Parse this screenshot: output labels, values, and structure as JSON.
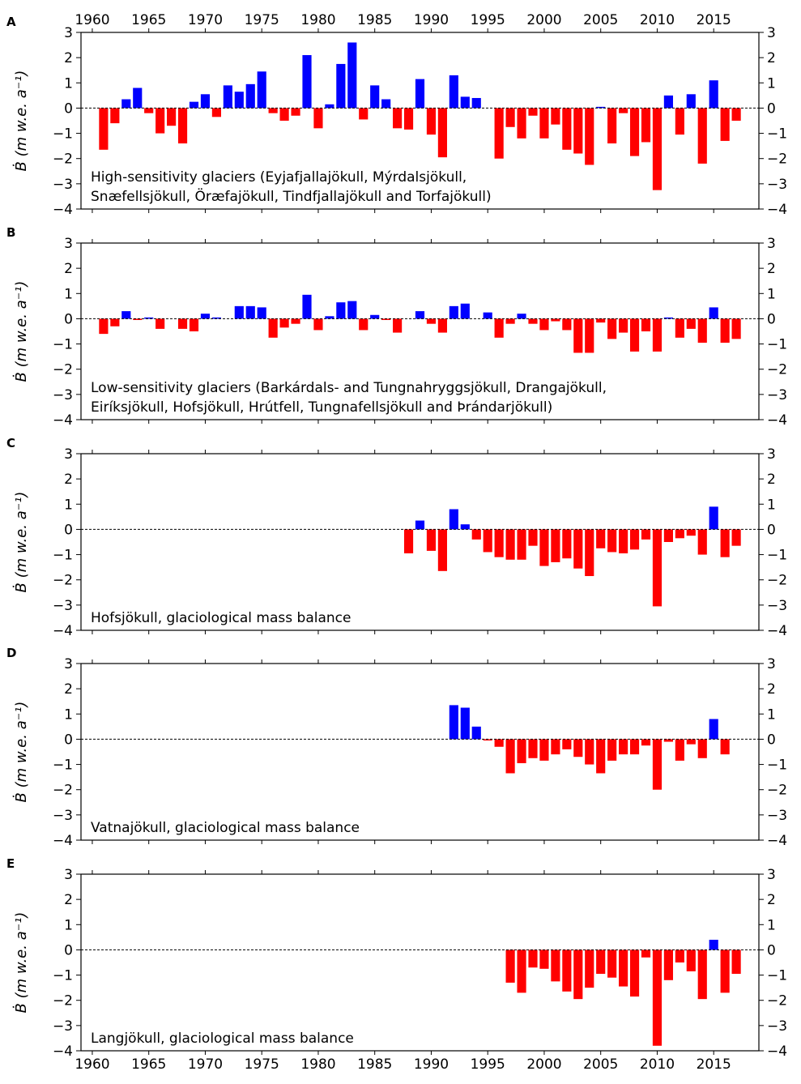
{
  "chart_data": [
    {
      "panel": "A",
      "type": "bar",
      "label": "High-sensitivity glaciers (Eyjafjallajökull, Mýrdalsjökull,\nSnæfellsjökull, Öræfajökull, Tindfjallajökull and Torfajökull)",
      "ylabel": "Ḃ (m w.e. a⁻¹)",
      "xlim": [
        1959,
        2019
      ],
      "ylim": [
        -4,
        3
      ],
      "yticks": [
        -4,
        -3,
        -2,
        -1,
        0,
        1,
        2,
        3
      ],
      "xticks": [
        1960,
        1965,
        1970,
        1975,
        1980,
        1985,
        1990,
        1995,
        2000,
        2005,
        2010,
        2015
      ],
      "positive_color": "#0000ff",
      "negative_color": "#ff0000",
      "x": [
        1961,
        1962,
        1963,
        1964,
        1965,
        1966,
        1967,
        1968,
        1969,
        1970,
        1971,
        1972,
        1973,
        1974,
        1975,
        1976,
        1977,
        1978,
        1979,
        1980,
        1981,
        1982,
        1983,
        1984,
        1985,
        1986,
        1987,
        1988,
        1989,
        1990,
        1991,
        1992,
        1993,
        1994,
        1995,
        1996,
        1997,
        1998,
        1999,
        2000,
        2001,
        2002,
        2003,
        2004,
        2005,
        2006,
        2007,
        2008,
        2009,
        2010,
        2011,
        2012,
        2013,
        2014,
        2015,
        2016,
        2017
      ],
      "values": [
        -1.65,
        -0.6,
        0.35,
        0.8,
        -0.2,
        -1.0,
        -0.7,
        -1.4,
        0.25,
        0.55,
        -0.35,
        0.9,
        0.65,
        0.95,
        1.45,
        -0.2,
        -0.5,
        -0.3,
        2.1,
        -0.8,
        0.15,
        1.75,
        2.6,
        -0.45,
        0.9,
        0.35,
        -0.8,
        -0.85,
        1.15,
        -1.05,
        -1.95,
        1.3,
        0.45,
        0.4,
        0.0,
        -2.0,
        -0.75,
        -1.2,
        -0.3,
        -1.2,
        -0.65,
        -1.65,
        -1.8,
        -2.25,
        0.05,
        -1.4,
        -0.2,
        -1.9,
        -1.35,
        -3.25,
        0.5,
        -1.05,
        0.55,
        -2.2,
        1.1,
        -1.3,
        -0.5
      ]
    },
    {
      "panel": "B",
      "type": "bar",
      "label": "Low-sensitivity glaciers (Barkárdals- and Tungnahryggsjökull, Drangajökull,\nEiríksjökull, Hofsjökull, Hrútfell, Tungnafellsjökull and Þrándarjökull)",
      "ylabel": "Ḃ (m w.e. a⁻¹)",
      "xlim": [
        1959,
        2019
      ],
      "ylim": [
        -4,
        3
      ],
      "yticks": [
        -4,
        -3,
        -2,
        -1,
        0,
        1,
        2,
        3
      ],
      "positive_color": "#0000ff",
      "negative_color": "#ff0000",
      "x": [
        1961,
        1962,
        1963,
        1964,
        1965,
        1966,
        1967,
        1968,
        1969,
        1970,
        1971,
        1972,
        1973,
        1974,
        1975,
        1976,
        1977,
        1978,
        1979,
        1980,
        1981,
        1982,
        1983,
        1984,
        1985,
        1986,
        1987,
        1988,
        1989,
        1990,
        1991,
        1992,
        1993,
        1994,
        1995,
        1996,
        1997,
        1998,
        1999,
        2000,
        2001,
        2002,
        2003,
        2004,
        2005,
        2006,
        2007,
        2008,
        2009,
        2010,
        2011,
        2012,
        2013,
        2014,
        2015,
        2016,
        2017
      ],
      "values": [
        -0.6,
        -0.3,
        0.3,
        -0.05,
        0.05,
        -0.4,
        0.0,
        -0.4,
        -0.5,
        0.2,
        0.05,
        0.0,
        0.5,
        0.5,
        0.45,
        -0.75,
        -0.35,
        -0.2,
        0.95,
        -0.45,
        0.1,
        0.65,
        0.7,
        -0.45,
        0.15,
        -0.05,
        -0.55,
        0.0,
        0.3,
        -0.2,
        -0.55,
        0.5,
        0.6,
        0.0,
        0.25,
        -0.75,
        -0.2,
        0.2,
        -0.2,
        -0.45,
        -0.1,
        -0.45,
        -1.35,
        -1.35,
        -0.15,
        -0.8,
        -0.55,
        -1.3,
        -0.5,
        -1.3,
        0.05,
        -0.75,
        -0.4,
        -0.95,
        0.45,
        -0.95,
        -0.8
      ]
    },
    {
      "panel": "C",
      "type": "bar",
      "label": "Hofsjökull, glaciological mass balance",
      "ylabel": "Ḃ (m w.e. a⁻¹)",
      "xlim": [
        1959,
        2019
      ],
      "ylim": [
        -4,
        3
      ],
      "yticks": [
        -4,
        -3,
        -2,
        -1,
        0,
        1,
        2,
        3
      ],
      "positive_color": "#0000ff",
      "negative_color": "#ff0000",
      "x": [
        1988,
        1989,
        1990,
        1991,
        1992,
        1993,
        1994,
        1995,
        1996,
        1997,
        1998,
        1999,
        2000,
        2001,
        2002,
        2003,
        2004,
        2005,
        2006,
        2007,
        2008,
        2009,
        2010,
        2011,
        2012,
        2013,
        2014,
        2015,
        2016,
        2017
      ],
      "values": [
        -0.95,
        0.35,
        -0.85,
        -1.65,
        0.8,
        0.2,
        -0.4,
        -0.9,
        -1.1,
        -1.2,
        -1.2,
        -0.65,
        -1.45,
        -1.3,
        -1.15,
        -1.55,
        -1.85,
        -0.75,
        -0.9,
        -0.95,
        -0.8,
        -0.4,
        -3.05,
        -0.5,
        -0.35,
        -0.25,
        -1.0,
        0.9,
        -1.1,
        -0.65
      ]
    },
    {
      "panel": "D",
      "type": "bar",
      "label": "Vatnajökull, glaciological mass balance",
      "ylabel": "Ḃ (m w.e. a⁻¹)",
      "xlim": [
        1959,
        2019
      ],
      "ylim": [
        -4,
        3
      ],
      "yticks": [
        -4,
        -3,
        -2,
        -1,
        0,
        1,
        2,
        3
      ],
      "positive_color": "#0000ff",
      "negative_color": "#ff0000",
      "x": [
        1992,
        1993,
        1994,
        1995,
        1996,
        1997,
        1998,
        1999,
        2000,
        2001,
        2002,
        2003,
        2004,
        2005,
        2006,
        2007,
        2008,
        2009,
        2010,
        2011,
        2012,
        2013,
        2014,
        2015,
        2016
      ],
      "values": [
        1.35,
        1.25,
        0.5,
        -0.05,
        -0.3,
        -1.35,
        -0.95,
        -0.75,
        -0.85,
        -0.6,
        -0.4,
        -0.7,
        -1.0,
        -1.35,
        -0.85,
        -0.6,
        -0.6,
        -0.25,
        -2.0,
        -0.1,
        -0.85,
        -0.2,
        -0.75,
        0.8,
        -0.6
      ]
    },
    {
      "panel": "E",
      "type": "bar",
      "label": "Langjökull, glaciological mass balance",
      "ylabel": "Ḃ (m w.e. a⁻¹)",
      "xlim": [
        1959,
        2019
      ],
      "ylim": [
        -4,
        3
      ],
      "yticks": [
        -4,
        -3,
        -2,
        -1,
        0,
        1,
        2,
        3
      ],
      "xticks": [
        1960,
        1965,
        1970,
        1975,
        1980,
        1985,
        1990,
        1995,
        2000,
        2005,
        2010,
        2015
      ],
      "positive_color": "#0000ff",
      "negative_color": "#ff0000",
      "x": [
        1997,
        1998,
        1999,
        2000,
        2001,
        2002,
        2003,
        2004,
        2005,
        2006,
        2007,
        2008,
        2009,
        2010,
        2011,
        2012,
        2013,
        2014,
        2015,
        2016,
        2017
      ],
      "values": [
        -1.3,
        -1.7,
        -0.7,
        -0.75,
        -1.25,
        -1.65,
        -1.95,
        -1.5,
        -0.95,
        -1.1,
        -1.45,
        -1.85,
        -0.3,
        -3.8,
        -1.2,
        -0.5,
        -0.85,
        -1.95,
        0.4,
        -1.7,
        -0.95
      ]
    }
  ]
}
